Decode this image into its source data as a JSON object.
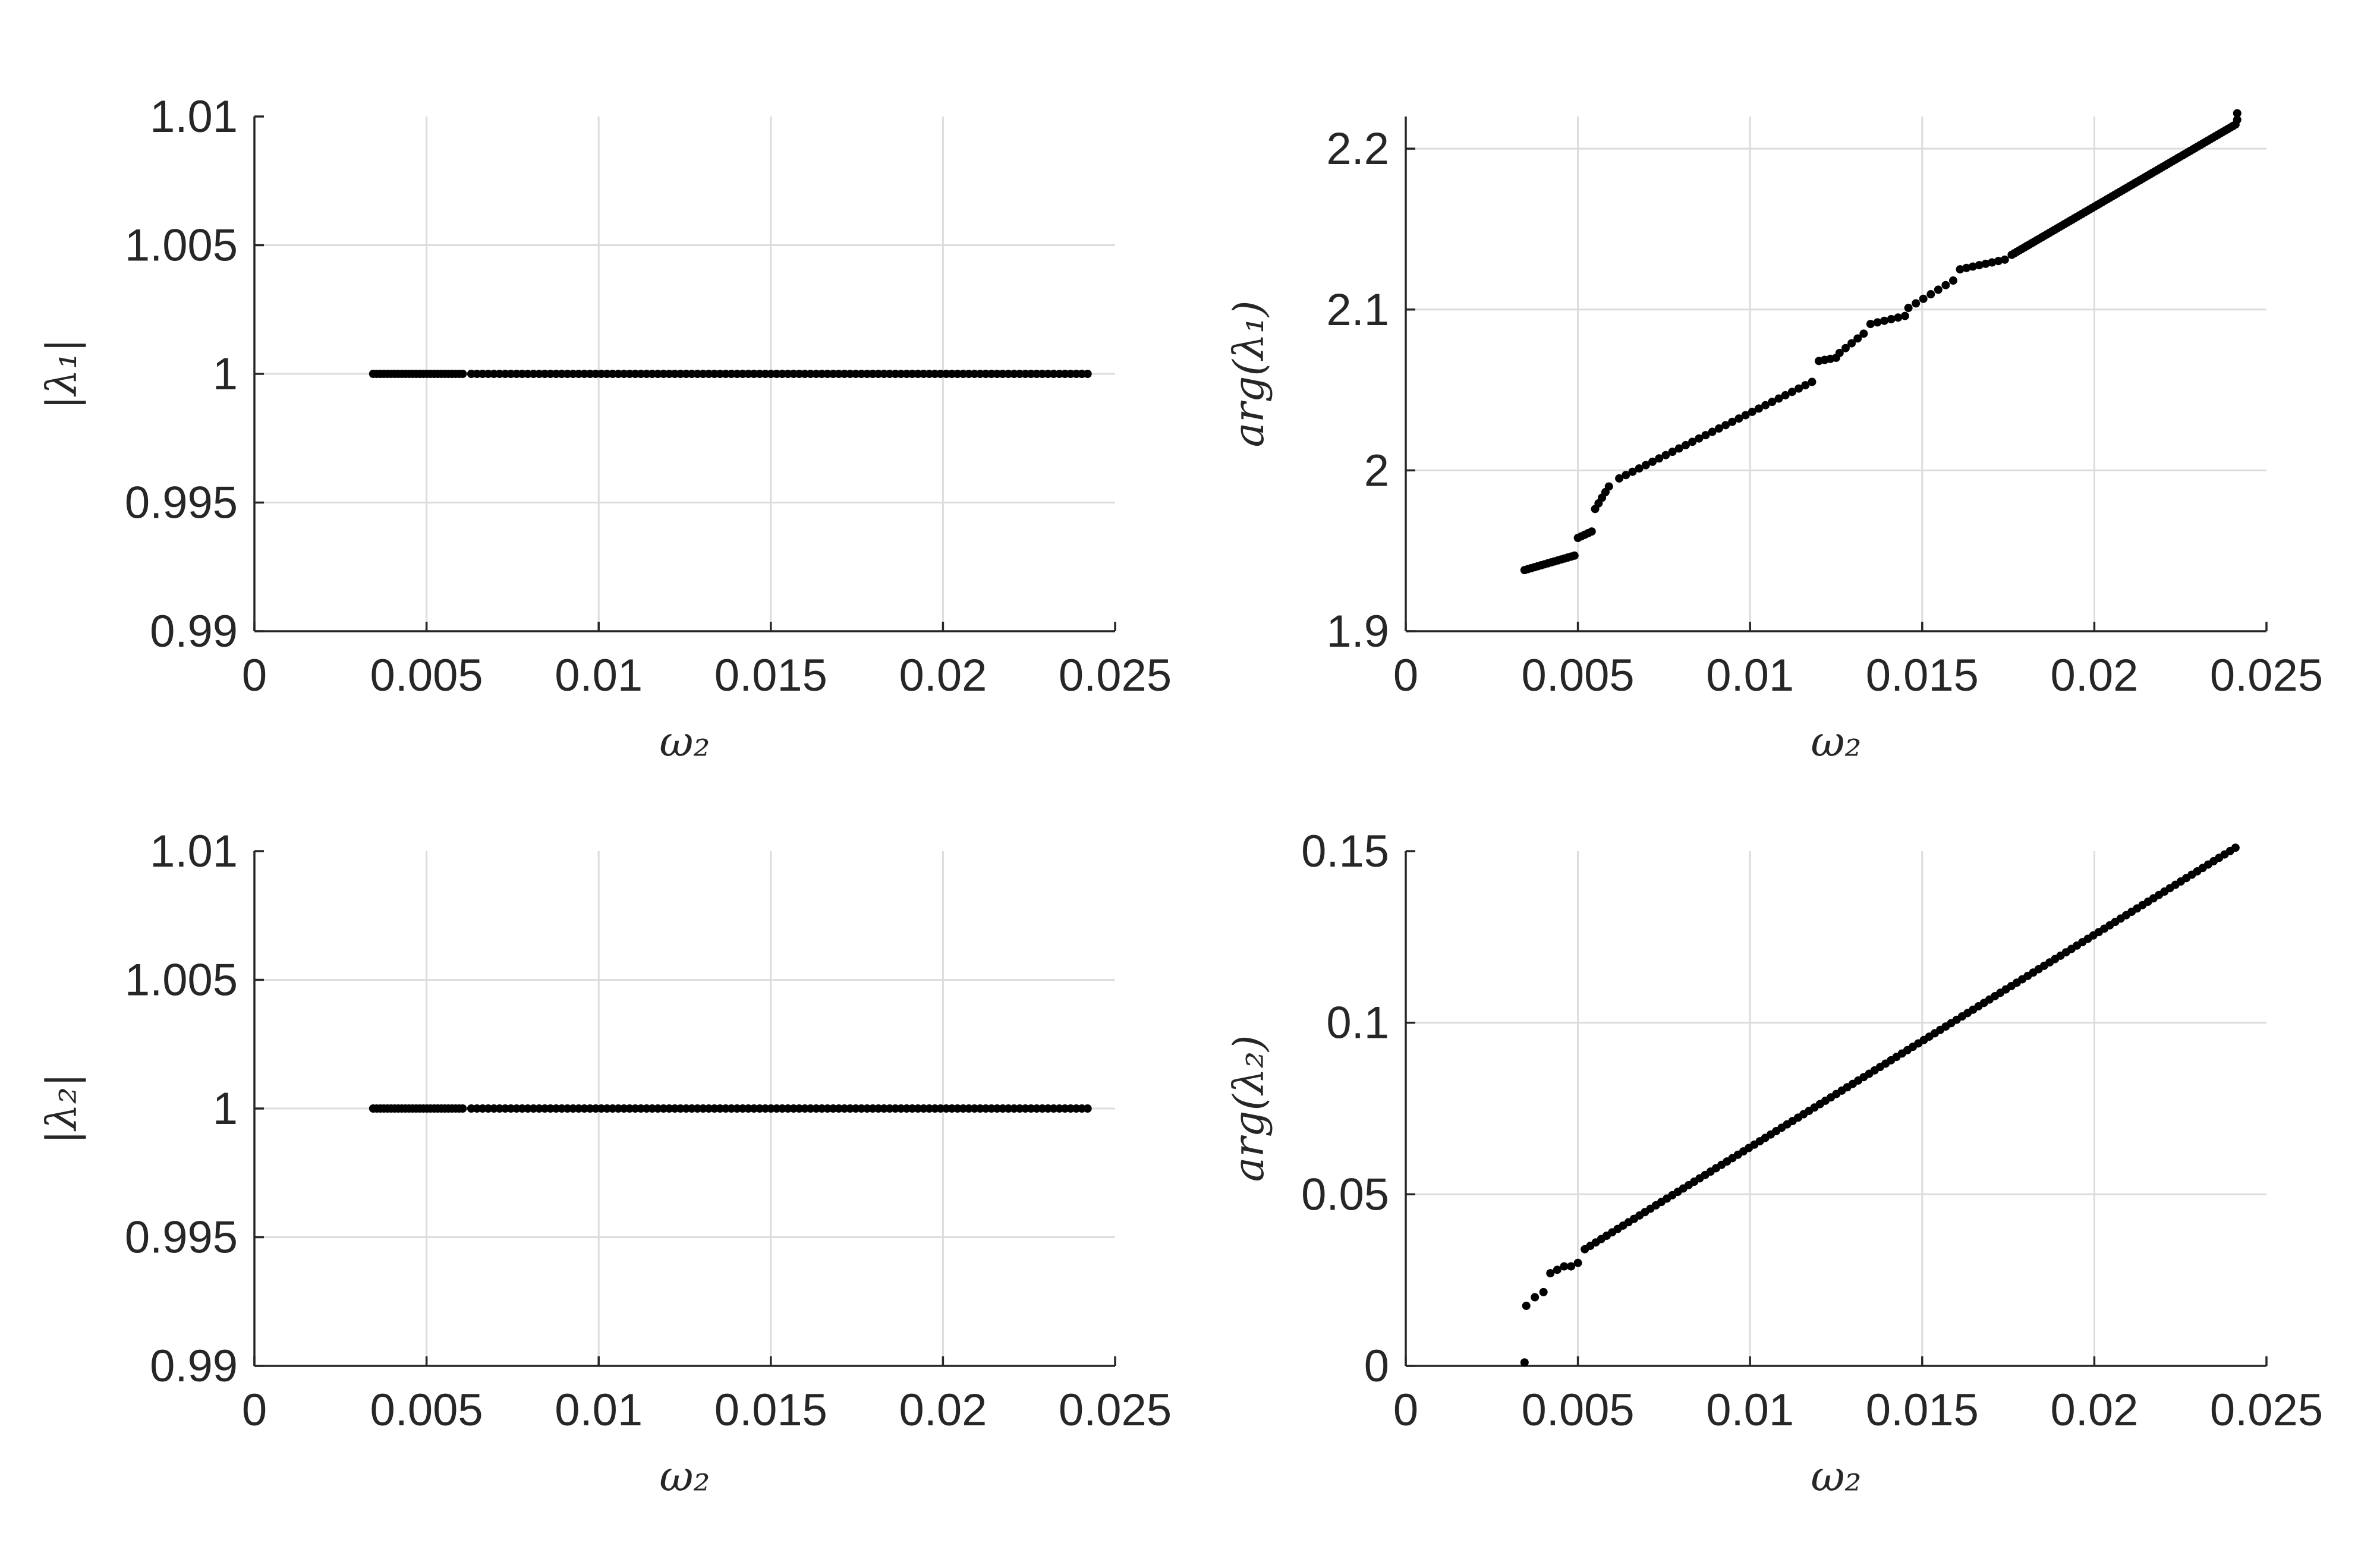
{
  "chart_data": [
    {
      "type": "scatter",
      "panel": "top-left",
      "xlabel": "ω₂",
      "ylabel": "|λ₁|",
      "xlim": [
        0,
        0.025
      ],
      "ylim": [
        0.99,
        1.01
      ],
      "xticks": [
        "0",
        "0.005",
        "0.01",
        "0.015",
        "0.02",
        "0.025"
      ],
      "yticks": [
        "0.99",
        "0.995",
        "1",
        "1.005",
        "1.01"
      ],
      "grid": true,
      "series": [
        {
          "segments": [
            {
              "x_range": [
                0.00345,
                0.00605
              ],
              "count": 26,
              "y": [
                1,
                1
              ]
            },
            {
              "x_range": [
                0.0063,
                0.0242
              ],
              "count": 110,
              "y": [
                1,
                1
              ]
            }
          ]
        }
      ]
    },
    {
      "type": "scatter",
      "panel": "top-right",
      "xlabel": "ω₂",
      "ylabel": "arg(λ₁)",
      "xlim": [
        0,
        0.025
      ],
      "ylim": [
        1.9,
        2.22
      ],
      "xticks": [
        "0",
        "0.005",
        "0.01",
        "0.015",
        "0.02",
        "0.025"
      ],
      "yticks": [
        "1.9",
        "2",
        "2.1",
        "2.2"
      ],
      "grid": true,
      "series": [
        {
          "segments": [
            {
              "x_range": [
                0.00345,
                0.0049
              ],
              "count": 16,
              "y": [
                1.938,
                1.947
              ]
            },
            {
              "x_range": [
                0.005,
                0.0054
              ],
              "count": 5,
              "y": [
                1.958,
                1.962
              ]
            },
            {
              "x_range": [
                0.0055,
                0.0059
              ],
              "count": 5,
              "y": [
                1.976,
                1.99
              ]
            },
            {
              "x_range": [
                0.0062,
                0.0118
              ],
              "count": 30,
              "y": [
                1.995,
                2.055
              ]
            },
            {
              "x_range": [
                0.012,
                0.0125
              ],
              "count": 4,
              "y": [
                2.068,
                2.07
              ]
            },
            {
              "x_range": [
                0.0126,
                0.0133
              ],
              "count": 5,
              "y": [
                2.073,
                2.085
              ]
            },
            {
              "x_range": [
                0.0135,
                0.0145
              ],
              "count": 6,
              "y": [
                2.091,
                2.096
              ]
            },
            {
              "x_range": [
                0.0146,
                0.0159
              ],
              "count": 7,
              "y": [
                2.101,
                2.118
              ]
            },
            {
              "x_range": [
                0.0161,
                0.0174
              ],
              "count": 8,
              "y": [
                2.125,
                2.131
              ]
            },
            {
              "x_range": [
                0.0176,
                0.0241
              ],
              "count": 90,
              "y": [
                2.134,
                2.215
              ]
            }
          ],
          "extra_points": [
            [
              0.02415,
              2.222
            ],
            [
              0.02415,
              2.218
            ]
          ]
        }
      ]
    },
    {
      "type": "scatter",
      "panel": "bottom-left",
      "xlabel": "ω₂",
      "ylabel": "|λ₂|",
      "xlim": [
        0,
        0.025
      ],
      "ylim": [
        0.99,
        1.01
      ],
      "xticks": [
        "0",
        "0.005",
        "0.01",
        "0.015",
        "0.02",
        "0.025"
      ],
      "yticks": [
        "0.99",
        "0.995",
        "1",
        "1.005",
        "1.01"
      ],
      "grid": true,
      "series": [
        {
          "segments": [
            {
              "x_range": [
                0.00345,
                0.00605
              ],
              "count": 26,
              "y": [
                1,
                1
              ]
            },
            {
              "x_range": [
                0.0063,
                0.0242
              ],
              "count": 110,
              "y": [
                1,
                1
              ]
            }
          ]
        }
      ]
    },
    {
      "type": "scatter",
      "panel": "bottom-right",
      "xlabel": "ω₂",
      "ylabel": "arg(λ₂)",
      "xlim": [
        0,
        0.025
      ],
      "ylim": [
        0,
        0.15
      ],
      "xticks": [
        "0",
        "0.005",
        "0.01",
        "0.015",
        "0.02",
        "0.025"
      ],
      "yticks": [
        "0",
        "0.05",
        "0.1",
        "0.15"
      ],
      "grid": true,
      "series": [
        {
          "segments": [
            {
              "x_range": [
                0.0052,
                0.0241
              ],
              "count": 120,
              "y": [
                0.034,
                0.151
              ]
            }
          ],
          "extra_points": [
            [
              0.00345,
              0.001
            ],
            [
              0.0035,
              0.0175
            ],
            [
              0.00375,
              0.02
            ],
            [
              0.004,
              0.0215
            ],
            [
              0.0042,
              0.027
            ],
            [
              0.0044,
              0.028
            ],
            [
              0.0046,
              0.029
            ],
            [
              0.0048,
              0.029
            ],
            [
              0.005,
              0.03
            ]
          ]
        }
      ]
    }
  ]
}
